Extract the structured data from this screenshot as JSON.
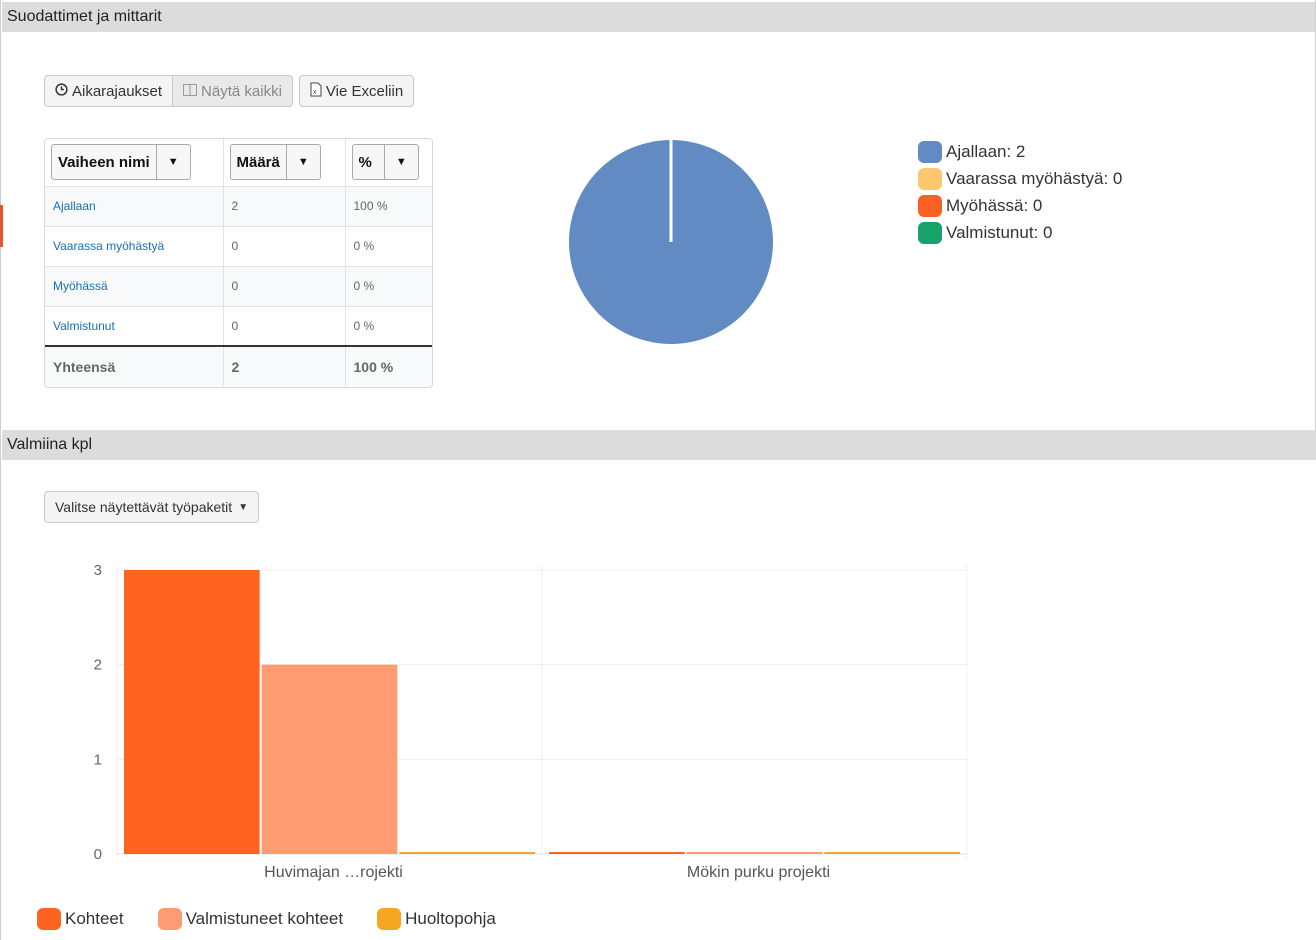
{
  "sections": {
    "filters_title": "Suodattimet ja mittarit",
    "ready_title": "Valmiina kpl"
  },
  "toolbar": {
    "deadlines_label": "Aikarajaukset",
    "show_all_label": "Näytä kaikki",
    "export_label": "Vie Exceliin"
  },
  "grid": {
    "headers": [
      "Vaiheen nimi",
      "Määrä",
      "%"
    ],
    "rows": [
      {
        "name": "Ajallaan",
        "count": "2",
        "pct": "100 %"
      },
      {
        "name": "Vaarassa myöhästyä",
        "count": "0",
        "pct": "0 %"
      },
      {
        "name": "Myöhässä",
        "count": "0",
        "pct": "0 %"
      },
      {
        "name": "Valmistunut",
        "count": "0",
        "pct": "0 %"
      }
    ],
    "total": {
      "name": "Yhteensä",
      "count": "2",
      "pct": "100 %"
    }
  },
  "pie_legend": [
    {
      "label": "Ajallaan: 2",
      "color": "#628bc4"
    },
    {
      "label": "Vaarassa myöhästyä: 0",
      "color": "#fbc870"
    },
    {
      "label": "Myöhässä: 0",
      "color": "#f96024"
    },
    {
      "label": "Valmistunut: 0",
      "color": "#17a26b"
    }
  ],
  "work_package_select": "Valitse näytettävät työpaketit",
  "chart_data": [
    {
      "type": "pie",
      "categories": [
        "Ajallaan",
        "Vaarassa myöhästyä",
        "Myöhässä",
        "Valmistunut"
      ],
      "values": [
        2,
        0,
        0,
        0
      ],
      "colors": [
        "#628bc4",
        "#fbc870",
        "#f96024",
        "#17a26b"
      ],
      "legend": "right"
    },
    {
      "type": "bar",
      "categories": [
        "Huvimajan …rojekti",
        "Mökin purku projekti"
      ],
      "series": [
        {
          "name": "Kohteet",
          "values": [
            3,
            0
          ],
          "color": "#ff6320"
        },
        {
          "name": "Valmistuneet kohteet",
          "values": [
            2,
            0
          ],
          "color": "#ff9b72"
        },
        {
          "name": "Huoltopohja",
          "values": [
            0,
            0
          ],
          "color": "#f5a623"
        }
      ],
      "yticks": [
        0,
        1,
        2,
        3
      ],
      "ylim": [
        0,
        3
      ],
      "grid": true,
      "legend": "bottom-left"
    }
  ]
}
